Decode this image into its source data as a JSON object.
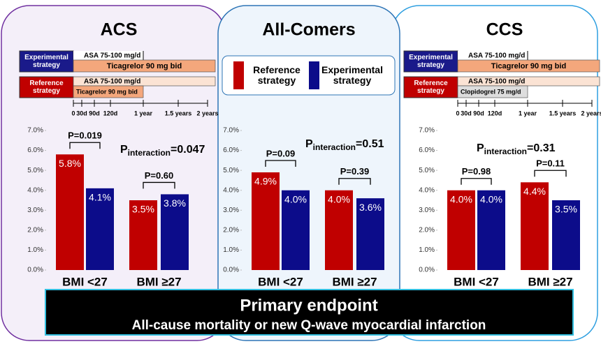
{
  "chart_data": [
    {
      "type": "bar",
      "title": "ACS",
      "categories": [
        "BMI <27",
        "BMI ≥27"
      ],
      "series": [
        {
          "name": "Reference strategy",
          "color": "#c00000",
          "values": [
            5.8,
            3.5
          ],
          "value_labels": [
            "5.8%",
            "3.5%"
          ]
        },
        {
          "name": "Experimental strategy",
          "color": "#0c0c8a",
          "values": [
            4.1,
            3.8
          ],
          "value_labels": [
            "4.1%",
            "3.8%"
          ]
        }
      ],
      "ylim": [
        0,
        7
      ],
      "yticks": [
        {
          "value": 0,
          "label": "0.0%"
        },
        {
          "value": 1,
          "label": "1.0%"
        },
        {
          "value": 2,
          "label": "2.0%"
        },
        {
          "value": 3,
          "label": "3.0%"
        },
        {
          "value": 4,
          "label": "4.0%"
        },
        {
          "value": 5,
          "label": "5.0%"
        },
        {
          "value": 6,
          "label": "6.0%"
        },
        {
          "value": 7,
          "label": "7.0%"
        }
      ],
      "p_values": [
        "P=0.019",
        "P=0.60"
      ],
      "interaction": {
        "prefix": "P",
        "subscript": "interaction",
        "suffix": "=0.047"
      },
      "timeline": {
        "rows": [
          {
            "name": "Experimental strategy",
            "bars": [
              "ASA 75-100 mg/d",
              "Ticagrelor 90 mg bid"
            ]
          },
          {
            "name": "Reference strategy",
            "bars": [
              "ASA 75-100 mg/d",
              "Ticagrelor 90 mg bid"
            ]
          }
        ],
        "ticks": [
          "0",
          "30d",
          "90d",
          "120d",
          "1 year",
          "1.5 years",
          "2 years"
        ]
      }
    },
    {
      "type": "bar",
      "title": "All-Comers",
      "categories": [
        "BMI <27",
        "BMI ≥27"
      ],
      "series": [
        {
          "name": "Reference strategy",
          "color": "#c00000",
          "values": [
            4.9,
            4.0
          ],
          "value_labels": [
            "4.9%",
            "4.0%"
          ]
        },
        {
          "name": "Experimental strategy",
          "color": "#0c0c8a",
          "values": [
            4.0,
            3.6
          ],
          "value_labels": [
            "4.0%",
            "3.6%"
          ]
        }
      ],
      "ylim": [
        0,
        7
      ],
      "yticks": [
        {
          "value": 0,
          "label": "0.0%"
        },
        {
          "value": 1,
          "label": "1.0%"
        },
        {
          "value": 2,
          "label": "2.0%"
        },
        {
          "value": 3,
          "label": "3.0%"
        },
        {
          "value": 4,
          "label": "4.0%"
        },
        {
          "value": 5,
          "label": "5.0%"
        },
        {
          "value": 6,
          "label": "6.0%"
        },
        {
          "value": 7,
          "label": "7.0%"
        }
      ],
      "p_values": [
        "P=0.09",
        "P=0.39"
      ],
      "interaction": {
        "prefix": "P",
        "subscript": "interaction",
        "suffix": "=0.51"
      },
      "legend": true
    },
    {
      "type": "bar",
      "title": "CCS",
      "categories": [
        "BMI <27",
        "BMI ≥27"
      ],
      "series": [
        {
          "name": "Reference strategy",
          "color": "#c00000",
          "values": [
            4.0,
            4.4
          ],
          "value_labels": [
            "4.0%",
            "4.4%"
          ]
        },
        {
          "name": "Experimental strategy",
          "color": "#0c0c8a",
          "values": [
            4.0,
            3.5
          ],
          "value_labels": [
            "4.0%",
            "3.5%"
          ]
        }
      ],
      "ylim": [
        0,
        7
      ],
      "yticks": [
        {
          "value": 0,
          "label": "0.0%"
        },
        {
          "value": 1,
          "label": "1.0%"
        },
        {
          "value": 2,
          "label": "2.0%"
        },
        {
          "value": 3,
          "label": "3.0%"
        },
        {
          "value": 4,
          "label": "4.0%"
        },
        {
          "value": 5,
          "label": "5.0%"
        },
        {
          "value": 6,
          "label": "6.0%"
        },
        {
          "value": 7,
          "label": "7.0%"
        }
      ],
      "p_values": [
        "P=0.98",
        "P=0.11"
      ],
      "interaction": {
        "prefix": "P",
        "subscript": "interaction",
        "suffix": "=0.31"
      },
      "timeline": {
        "rows": [
          {
            "name": "Experimental strategy",
            "bars": [
              "ASA 75-100 mg/d",
              "Ticagrelor 90 mg bid"
            ]
          },
          {
            "name": "Reference strategy",
            "bars": [
              "ASA 75-100 mg/d",
              "Clopidogrel 75 mg/d"
            ]
          }
        ],
        "ticks": [
          "0",
          "30d",
          "90d",
          "120d",
          "1 year",
          "1.5 years",
          "2 years"
        ]
      }
    }
  ],
  "footer": {
    "title": "Primary endpoint",
    "subtitle": "All-cause mortality or new Q-wave myocardial infarction"
  }
}
